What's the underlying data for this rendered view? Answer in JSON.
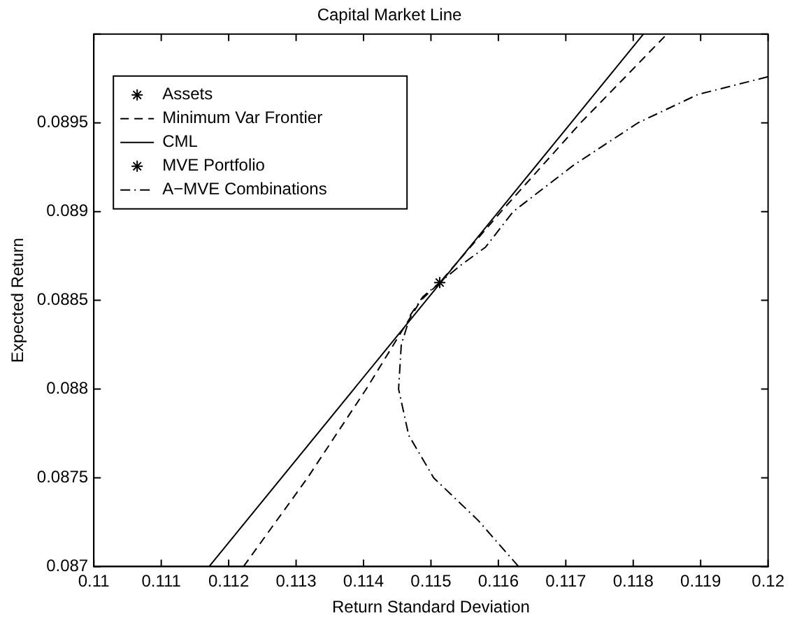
{
  "chart_data": {
    "type": "line",
    "title": "Capital Market Line",
    "xlabel": "Return Standard Deviation",
    "ylabel": "Expected Return",
    "xlim": [
      0.11,
      0.12
    ],
    "xticks": [
      0.11,
      0.111,
      0.112,
      0.113,
      0.114,
      0.115,
      0.116,
      0.117,
      0.118,
      0.119,
      0.12
    ],
    "ylim": [
      0.087,
      0.09
    ],
    "yticks": [
      0.087,
      0.0875,
      0.088,
      0.0885,
      0.089,
      0.0895,
      {
        "value": 0.09,
        "label": null
      }
    ],
    "grid": false,
    "legend": "top left",
    "series": [
      {
        "name": "Assets",
        "type": "scatter",
        "marker": "cross",
        "color": "#000000"
      },
      {
        "name": "Minimum Var Frontier",
        "type": "line",
        "line_style": "dashed",
        "marker": "none",
        "color": "#000000",
        "x": [
          0.11222,
          0.11317,
          0.11404,
          0.11485,
          0.11513,
          0.11604,
          0.11722,
          0.1185
        ],
        "values": [
          0.087,
          0.0875,
          0.088,
          0.0885,
          0.0886,
          0.089,
          0.0895,
          0.09
        ]
      },
      {
        "name": "CML",
        "type": "line",
        "line_style": "solid",
        "marker": "none",
        "color": "#000000",
        "x": [
          0.11171,
          0.11815
        ],
        "values": [
          0.087,
          0.09
        ]
      },
      {
        "name": "MVE Portfolio",
        "type": "scatter",
        "marker": "cross",
        "color": "#000000",
        "x": [
          0.11513
        ],
        "values": [
          0.0886
        ]
      },
      {
        "name": "A−MVE Combinations",
        "type": "line",
        "line_style": "dashdot",
        "marker": "none",
        "color": "#000000",
        "x": [
          0.1163,
          0.1157,
          0.11504,
          0.11467,
          0.11452,
          0.11456,
          0.1147,
          0.11488,
          0.11513,
          0.11545,
          0.11581,
          0.11622,
          0.11711,
          0.11807,
          0.11896,
          0.12
        ],
        "values": [
          0.087,
          0.08726,
          0.0875,
          0.08774,
          0.088,
          0.08825,
          0.08842,
          0.08852,
          0.0886,
          0.0887,
          0.0888,
          0.089,
          0.08926,
          0.0895,
          0.08966,
          0.08976
        ]
      }
    ]
  }
}
